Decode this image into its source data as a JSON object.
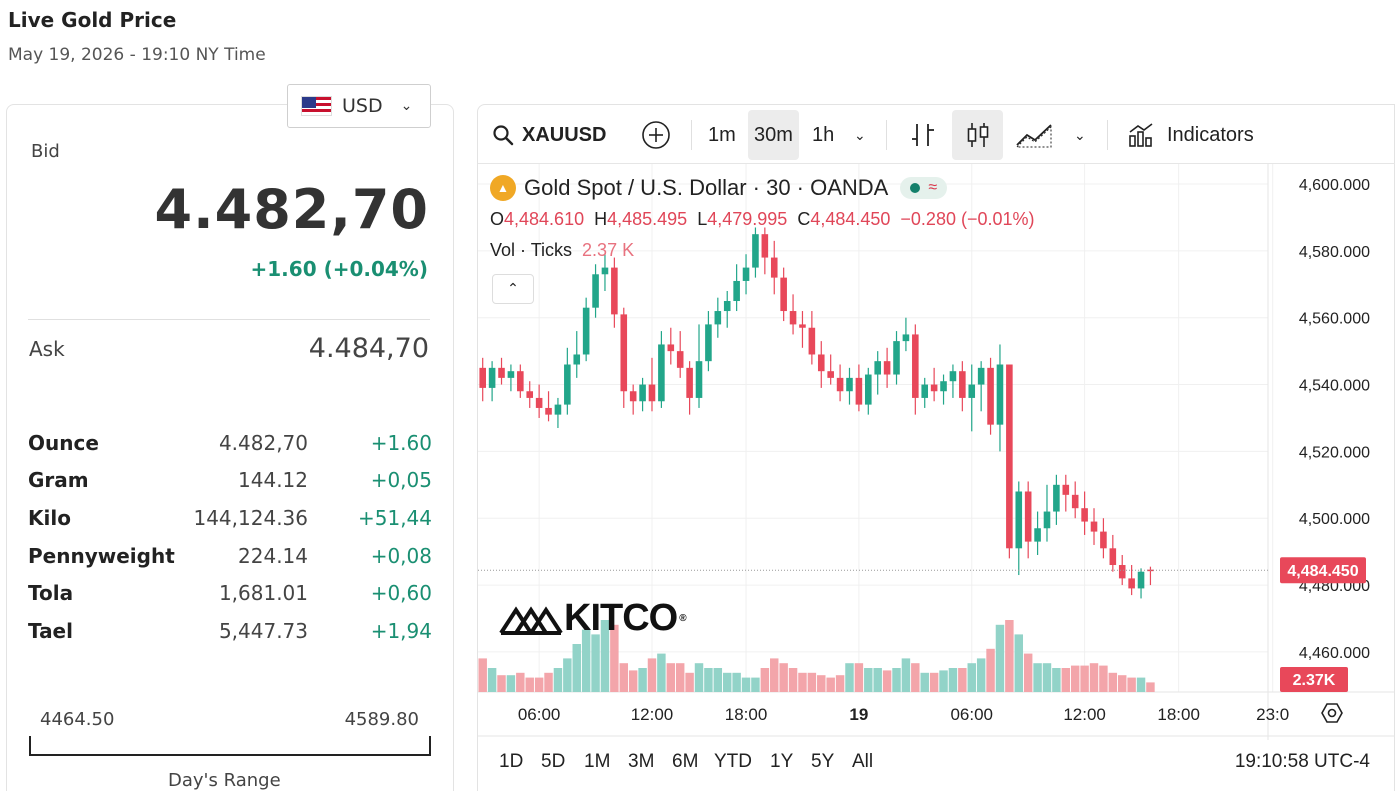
{
  "page": {
    "title": "Live Gold Price",
    "subtitle": "May 19, 2026 - 19:10 NY Time"
  },
  "quote": {
    "currency": "USD",
    "bid_label": "Bid",
    "bid_value": "4.482,70",
    "bid_change": "+1.60 (+0.04%)",
    "ask_label": "Ask",
    "ask_value": "4.484,70",
    "units": [
      {
        "name": "Ounce",
        "price": "4.482,70",
        "change": "+1.60"
      },
      {
        "name": "Gram",
        "price": "144.12",
        "change": "+0,05"
      },
      {
        "name": "Kilo",
        "price": "144,124.36",
        "change": "+51,44"
      },
      {
        "name": "Pennyweight",
        "price": "224.14",
        "change": "+0,08"
      },
      {
        "name": "Tola",
        "price": "1,681.01",
        "change": "+0,60"
      },
      {
        "name": "Tael",
        "price": "5,447.73",
        "change": "+1,94"
      }
    ],
    "day_range": {
      "low": "4464.50",
      "high": "4589.80",
      "label": "Day's Range"
    }
  },
  "toolbar": {
    "symbol": "XAUUSD",
    "intervals": [
      "1m",
      "30m",
      "1h"
    ],
    "selected_interval": "30m",
    "indicators_label": "Indicators"
  },
  "legend": {
    "title": "Gold Spot / U.S. Dollar · 30 · OANDA",
    "open_label": "O",
    "open": "4,484.610",
    "high_label": "H",
    "high": "4,485.495",
    "low_label": "L",
    "low": "4,479.995",
    "close_label": "C",
    "close": "4,484.450",
    "change": "−0.280 (−0.01%)",
    "vol_label": "Vol · Ticks",
    "vol_value": "2.37 K"
  },
  "brand": "KITCO",
  "bottom": {
    "ranges": [
      "1D",
      "5D",
      "1M",
      "3M",
      "6M",
      "YTD",
      "1Y",
      "5Y",
      "All"
    ],
    "clock": "19:10:58 UTC-4"
  },
  "colors": {
    "up": "#22a68a",
    "down": "#e8485a",
    "vol_up": "#92d3c8",
    "vol_down": "#f3a5aa",
    "price_tag": "#e8485a"
  },
  "chart_data": {
    "type": "candlestick",
    "title": "Gold Spot / U.S. Dollar · 30 · OANDA",
    "ylim": [
      4448,
      4606
    ],
    "y_ticks": [
      "4,600.000",
      "4,580.000",
      "4,560.000",
      "4,540.000",
      "4,520.000",
      "4,500.000",
      "4,480.000",
      "4,460.000"
    ],
    "y_tick_values": [
      4600,
      4580,
      4560,
      4540,
      4520,
      4500,
      4480,
      4460
    ],
    "x_ticks": [
      {
        "label": "06:00",
        "index": 6
      },
      {
        "label": "12:00",
        "index": 18
      },
      {
        "label": "18:00",
        "index": 28
      },
      {
        "label": "19",
        "index": 40
      },
      {
        "label": "06:00",
        "index": 52
      },
      {
        "label": "12:00",
        "index": 64
      },
      {
        "label": "18:00",
        "index": 74
      },
      {
        "label": "23:0",
        "index": 84
      }
    ],
    "last_price": "4,484.450",
    "last_price_value": 4484.45,
    "last_volume": "2.37K",
    "candles": [
      [
        4545,
        4548,
        4535,
        4539
      ],
      [
        4539,
        4547,
        4535,
        4545
      ],
      [
        4545,
        4548,
        4540,
        4542
      ],
      [
        4542,
        4546,
        4538,
        4544
      ],
      [
        4544,
        4546,
        4536,
        4538
      ],
      [
        4538,
        4541,
        4533,
        4536
      ],
      [
        4536,
        4540,
        4530,
        4533
      ],
      [
        4533,
        4538,
        4529,
        4531
      ],
      [
        4531,
        4536,
        4527,
        4534
      ],
      [
        4534,
        4551,
        4531,
        4546
      ],
      [
        4546,
        4556,
        4542,
        4549
      ],
      [
        4549,
        4566,
        4547,
        4563
      ],
      [
        4563,
        4576,
        4560,
        4573
      ],
      [
        4573,
        4579,
        4568,
        4575
      ],
      [
        4575,
        4578,
        4557,
        4561
      ],
      [
        4561,
        4563,
        4533,
        4538
      ],
      [
        4538,
        4540,
        4531,
        4535
      ],
      [
        4535,
        4542,
        4532,
        4540
      ],
      [
        4540,
        4548,
        4532,
        4535
      ],
      [
        4535,
        4556,
        4533,
        4552
      ],
      [
        4552,
        4557,
        4546,
        4550
      ],
      [
        4550,
        4556,
        4542,
        4545
      ],
      [
        4545,
        4547,
        4531,
        4536
      ],
      [
        4536,
        4558,
        4533,
        4547
      ],
      [
        4547,
        4562,
        4544,
        4558
      ],
      [
        4558,
        4566,
        4554,
        4562
      ],
      [
        4562,
        4568,
        4557,
        4565
      ],
      [
        4565,
        4576,
        4562,
        4571
      ],
      [
        4571,
        4579,
        4567,
        4575
      ],
      [
        4575,
        4587,
        4572,
        4585
      ],
      [
        4585,
        4587,
        4573,
        4578
      ],
      [
        4578,
        4583,
        4567,
        4572
      ],
      [
        4572,
        4575,
        4559,
        4562
      ],
      [
        4562,
        4567,
        4555,
        4558
      ],
      [
        4558,
        4562,
        4551,
        4557
      ],
      [
        4557,
        4562,
        4546,
        4549
      ],
      [
        4549,
        4553,
        4539,
        4544
      ],
      [
        4544,
        4549,
        4540,
        4542
      ],
      [
        4542,
        4546,
        4535,
        4538
      ],
      [
        4538,
        4545,
        4534,
        4542
      ],
      [
        4542,
        4546,
        4532,
        4534
      ],
      [
        4534,
        4545,
        4531,
        4543
      ],
      [
        4543,
        4550,
        4537,
        4547
      ],
      [
        4547,
        4551,
        4539,
        4543
      ],
      [
        4543,
        4556,
        4540,
        4553
      ],
      [
        4553,
        4560,
        4550,
        4555
      ],
      [
        4555,
        4558,
        4531,
        4536
      ],
      [
        4536,
        4542,
        4533,
        4540
      ],
      [
        4540,
        4545,
        4535,
        4538
      ],
      [
        4538,
        4543,
        4534,
        4541
      ],
      [
        4541,
        4546,
        4536,
        4544
      ],
      [
        4544,
        4547,
        4532,
        4536
      ],
      [
        4536,
        4546,
        4526,
        4540
      ],
      [
        4540,
        4547,
        4532,
        4545
      ],
      [
        4545,
        4548,
        4525,
        4528
      ],
      [
        4528,
        4552,
        4520,
        4546
      ],
      [
        4546,
        4546,
        4488,
        4491
      ],
      [
        4491,
        4511,
        4483,
        4508
      ],
      [
        4508,
        4511,
        4488,
        4493
      ],
      [
        4493,
        4502,
        4489,
        4497
      ],
      [
        4497,
        4510,
        4493,
        4502
      ],
      [
        4502,
        4513,
        4498,
        4510
      ],
      [
        4510,
        4513,
        4502,
        4507
      ],
      [
        4507,
        4511,
        4500,
        4503
      ],
      [
        4503,
        4508,
        4495,
        4499
      ],
      [
        4499,
        4503,
        4492,
        4496
      ],
      [
        4496,
        4500,
        4488,
        4491
      ],
      [
        4491,
        4495,
        4484,
        4486
      ],
      [
        4486,
        4489,
        4480,
        4482
      ],
      [
        4482,
        4486,
        4477,
        4479
      ],
      [
        4479,
        4485,
        4476,
        4484
      ],
      [
        4484.61,
        4485.5,
        4480,
        4484.45
      ]
    ],
    "volume_max": 30,
    "volumes": [
      14,
      10,
      7,
      7,
      8,
      6,
      6,
      8,
      10,
      14,
      20,
      26,
      24,
      30,
      28,
      12,
      9,
      10,
      14,
      16,
      12,
      12,
      8,
      12,
      10,
      10,
      8,
      8,
      6,
      6,
      10,
      14,
      12,
      10,
      8,
      8,
      7,
      6,
      7,
      12,
      12,
      10,
      10,
      9,
      10,
      14,
      12,
      8,
      8,
      9,
      10,
      10,
      12,
      14,
      18,
      28,
      30,
      24,
      16,
      12,
      12,
      10,
      10,
      11,
      11,
      12,
      11,
      8,
      7,
      6,
      6,
      4
    ]
  }
}
